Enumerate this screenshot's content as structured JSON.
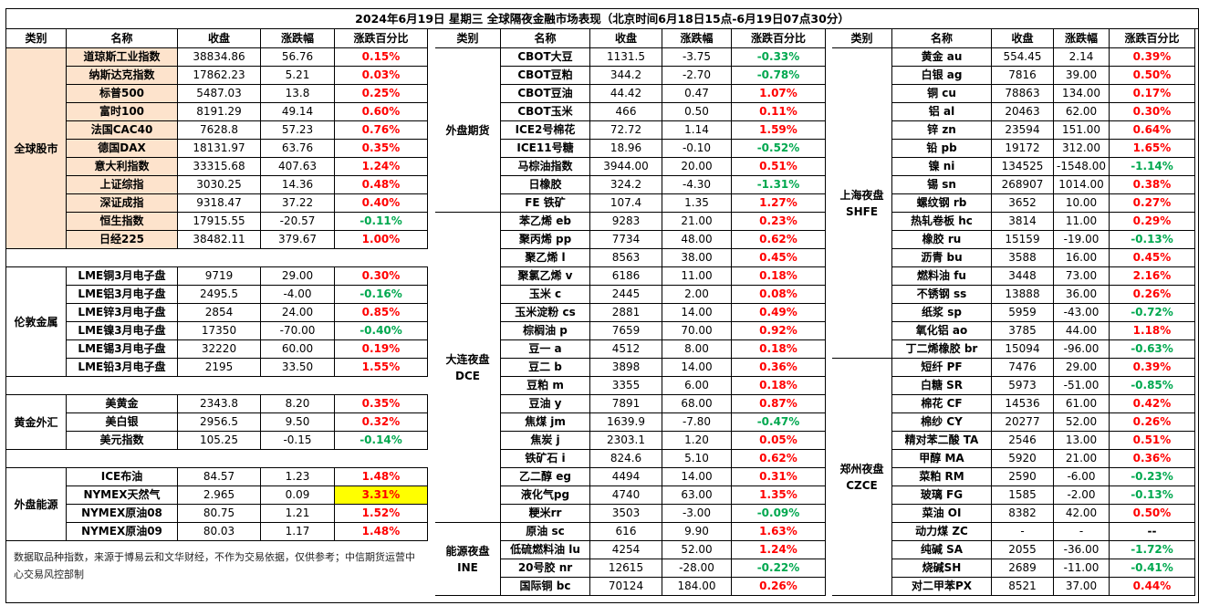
{
  "title": "2024年6月19日 星期三 全球隔夜金融市场表现（北京时间6月18日15点-6月19日07点30分）",
  "headers": [
    "类别",
    "名称",
    "收盘",
    "涨跌幅",
    "涨跌百分比"
  ],
  "note": "数据取品种指数，来源于博易云和文华财经，不作为交易依据，仅供参考；中信期货运营中心交易风控部制",
  "panel1": [
    {
      "category": "全球股市",
      "rows": [
        [
          "道琼斯工业指数",
          "38834.86",
          "56.76",
          "0.15%",
          "up"
        ],
        [
          "纳斯达克指数",
          "17862.23",
          "5.21",
          "0.03%",
          "up"
        ],
        [
          "标普500",
          "5487.03",
          "13.8",
          "0.25%",
          "up"
        ],
        [
          "富时100",
          "8191.29",
          "49.14",
          "0.60%",
          "up"
        ],
        [
          "法国CAC40",
          "7628.8",
          "57.23",
          "0.76%",
          "up"
        ],
        [
          "德国DAX",
          "18131.97",
          "63.76",
          "0.35%",
          "up"
        ],
        [
          "意大利指数",
          "33315.68",
          "407.63",
          "1.24%",
          "up"
        ],
        [
          "上证综指",
          "3030.25",
          "14.36",
          "0.48%",
          "up"
        ],
        [
          "深证成指",
          "9318.47",
          "37.22",
          "0.40%",
          "up"
        ],
        [
          "恒生指数",
          "17915.55",
          "-20.57",
          "-0.11%",
          "down"
        ],
        [
          "日经225",
          "38482.11",
          "379.67",
          "1.00%",
          "up"
        ]
      ]
    },
    {
      "category": "伦敦金属",
      "rows": [
        [
          "LME铜3月电子盘",
          "9719",
          "29.00",
          "0.30%",
          "up"
        ],
        [
          "LME铝3月电子盘",
          "2495.5",
          "-4.00",
          "-0.16%",
          "down"
        ],
        [
          "LME锌3月电子盘",
          "2854",
          "24.00",
          "0.85%",
          "up"
        ],
        [
          "LME镍3月电子盘",
          "17350",
          "-70.00",
          "-0.40%",
          "down"
        ],
        [
          "LME锡3月电子盘",
          "32220",
          "60.00",
          "0.19%",
          "up"
        ],
        [
          "LME铅3月电子盘",
          "2195",
          "33.50",
          "1.55%",
          "up"
        ]
      ]
    },
    {
      "category": "黄金外汇",
      "rows": [
        [
          "美黄金",
          "2343.8",
          "8.20",
          "0.35%",
          "up"
        ],
        [
          "美白银",
          "2956.5",
          "9.50",
          "0.32%",
          "up"
        ],
        [
          "美元指数",
          "105.25",
          "-0.15",
          "-0.14%",
          "down"
        ]
      ]
    },
    {
      "category": "外盘能源",
      "rows": [
        [
          "ICE布油",
          "84.57",
          "1.23",
          "1.48%",
          "up"
        ],
        [
          "NYMEX天然气",
          "2.965",
          "0.09",
          "3.31%",
          "up"
        ],
        [
          "NYMEX原油08",
          "80.75",
          "1.21",
          "1.52%",
          "up"
        ],
        [
          "NYMEX原油09",
          "80.03",
          "1.17",
          "1.48%",
          "up"
        ]
      ]
    }
  ],
  "panel2": [
    {
      "category": "外盘期货",
      "rows": [
        [
          "CBOT大豆",
          "1131.5",
          "-3.75",
          "-0.33%",
          "down"
        ],
        [
          "CBOT豆粕",
          "344.2",
          "-2.70",
          "-0.78%",
          "down"
        ],
        [
          "CBOT豆油",
          "44.42",
          "0.47",
          "1.07%",
          "up"
        ],
        [
          "CBOT玉米",
          "466",
          "0.50",
          "0.11%",
          "up"
        ],
        [
          "ICE2号棉花",
          "72.72",
          "1.14",
          "1.59%",
          "up"
        ],
        [
          "ICE11号糖",
          "18.96",
          "-0.10",
          "-0.52%",
          "down"
        ],
        [
          "马棕油指数",
          "3944.00",
          "20.00",
          "0.51%",
          "up"
        ],
        [
          "日橡胶",
          "324.2",
          "-4.30",
          "-1.31%",
          "down"
        ],
        [
          "FE 铁矿",
          "107.4",
          "1.35",
          "1.27%",
          "up"
        ]
      ]
    },
    {
      "category": "大连夜盘\nDCE",
      "rows": [
        [
          "苯乙烯 eb",
          "9283",
          "21.00",
          "0.23%",
          "up"
        ],
        [
          "聚丙烯 pp",
          "7734",
          "48.00",
          "0.62%",
          "up"
        ],
        [
          "聚乙烯 l",
          "8563",
          "38.00",
          "0.45%",
          "up"
        ],
        [
          "聚氯乙烯 v",
          "6186",
          "11.00",
          "0.18%",
          "up"
        ],
        [
          "玉米 c",
          "2445",
          "2.00",
          "0.08%",
          "up"
        ],
        [
          "玉米淀粉 cs",
          "2881",
          "14.00",
          "0.49%",
          "up"
        ],
        [
          "棕榈油 p",
          "7659",
          "70.00",
          "0.92%",
          "up"
        ],
        [
          "豆一 a",
          "4512",
          "8.00",
          "0.18%",
          "up"
        ],
        [
          "豆二 b",
          "3898",
          "14.00",
          "0.36%",
          "up"
        ],
        [
          "豆粕 m",
          "3355",
          "6.00",
          "0.18%",
          "up"
        ],
        [
          "豆油 y",
          "7891",
          "68.00",
          "0.87%",
          "up"
        ],
        [
          "焦煤 jm",
          "1639.9",
          "-7.80",
          "-0.47%",
          "down"
        ],
        [
          "焦炭 j",
          "2303.1",
          "1.20",
          "0.05%",
          "up"
        ],
        [
          "铁矿石 i",
          "824.6",
          "5.10",
          "0.62%",
          "up"
        ],
        [
          "乙二醇 eg",
          "4494",
          "14.00",
          "0.31%",
          "up"
        ],
        [
          "液化气pg",
          "4740",
          "63.00",
          "1.35%",
          "up"
        ],
        [
          "粳米rr",
          "3503",
          "-3.00",
          "-0.09%",
          "down"
        ]
      ]
    },
    {
      "category": "能源夜盘\nINE",
      "rows": [
        [
          "原油 sc",
          "616",
          "9.90",
          "1.63%",
          "up"
        ],
        [
          "低硫燃料油 lu",
          "4254",
          "52.00",
          "1.24%",
          "up"
        ],
        [
          "20号胶 nr",
          "12615",
          "-28.00",
          "-0.22%",
          "down"
        ],
        [
          "国际铜 bc",
          "70124",
          "184.00",
          "0.26%",
          "up"
        ]
      ]
    }
  ],
  "panel3": [
    {
      "category": "上海夜盘\nSHFE",
      "rows": [
        [
          "黄金 au",
          "554.45",
          "2.14",
          "0.39%",
          "up"
        ],
        [
          "白银 ag",
          "7816",
          "39.00",
          "0.50%",
          "up"
        ],
        [
          "铜 cu",
          "78863",
          "134.00",
          "0.17%",
          "up"
        ],
        [
          "铝 al",
          "20463",
          "62.00",
          "0.30%",
          "up"
        ],
        [
          "锌 zn",
          "23594",
          "151.00",
          "0.64%",
          "up"
        ],
        [
          "铅 pb",
          "19172",
          "312.00",
          "1.65%",
          "up"
        ],
        [
          "镍 ni",
          "134525",
          "-1548.00",
          "-1.14%",
          "down"
        ],
        [
          "锡 sn",
          "268907",
          "1014.00",
          "0.38%",
          "up"
        ],
        [
          "螺纹钢 rb",
          "3652",
          "10.00",
          "0.27%",
          "up"
        ],
        [
          "热轧卷板 hc",
          "3814",
          "11.00",
          "0.29%",
          "up"
        ],
        [
          "橡胶 ru",
          "15159",
          "-19.00",
          "-0.13%",
          "down"
        ],
        [
          "沥青 bu",
          "3588",
          "16.00",
          "0.45%",
          "up"
        ],
        [
          "燃料油 fu",
          "3448",
          "73.00",
          "2.16%",
          "up"
        ],
        [
          "不锈钢 ss",
          "13888",
          "36.00",
          "0.26%",
          "up"
        ],
        [
          "纸浆 sp",
          "5959",
          "-43.00",
          "-0.72%",
          "down"
        ],
        [
          "氧化铝 ao",
          "3785",
          "44.00",
          "1.18%",
          "up"
        ],
        [
          "丁二烯橡胶 br",
          "15094",
          "-96.00",
          "-0.63%",
          "down"
        ]
      ]
    },
    {
      "category": "郑州夜盘\nCZCE",
      "rows": [
        [
          "短纤 PF",
          "7476",
          "29.00",
          "0.39%",
          "up"
        ],
        [
          "白糖 SR",
          "5973",
          "-51.00",
          "-0.85%",
          "down"
        ],
        [
          "棉花 CF",
          "14536",
          "61.00",
          "0.42%",
          "up"
        ],
        [
          "棉纱 CY",
          "20277",
          "52.00",
          "0.26%",
          "up"
        ],
        [
          "精对苯二酸 TA",
          "2546",
          "13.00",
          "0.51%",
          "up"
        ],
        [
          "甲醇 MA",
          "5920",
          "21.00",
          "0.36%",
          "up"
        ],
        [
          "菜粕 RM",
          "2590",
          "-6.00",
          "-0.23%",
          "down"
        ],
        [
          "玻璃 FG",
          "1585",
          "-2.00",
          "-0.13%",
          "down"
        ],
        [
          "菜油 OI",
          "8382",
          "42.00",
          "0.50%",
          "up"
        ],
        [
          "动力煤 ZC",
          "-",
          "-",
          "--",
          "none"
        ],
        [
          "纯碱 SA",
          "2055",
          "-36.00",
          "-1.72%",
          "down"
        ],
        [
          "烧碱SH",
          "2689",
          "-11.00",
          "-0.41%",
          "down"
        ],
        [
          "对二甲苯PX",
          "8521",
          "37.00",
          "0.44%",
          "up"
        ]
      ]
    }
  ],
  "colors": {
    "up": "#ff0000",
    "down": "#00a84f",
    "highlight": "#ffff00",
    "equity_bg": "#fde3cc"
  }
}
